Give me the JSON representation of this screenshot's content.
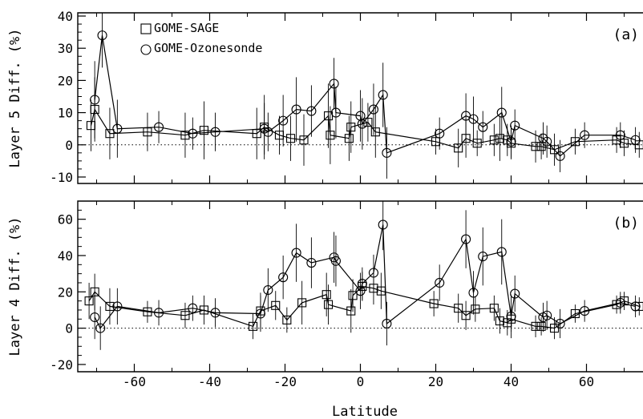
{
  "chart_data": [
    {
      "type": "scatter",
      "panel_label": "(a)",
      "title": "",
      "xlabel": "",
      "ylabel": "Layer 5 Diff. (%)",
      "xlim": [
        -75,
        75
      ],
      "ylim": [
        -12,
        41
      ],
      "yticks": [
        -10,
        0,
        10,
        20,
        30,
        40
      ],
      "xticks": [
        -60,
        -40,
        -20,
        0,
        20,
        40,
        60
      ],
      "legend_position": "top-left",
      "reference_line": 0,
      "series": [
        {
          "name": "GOME-SAGE",
          "marker": "square",
          "points": [
            {
              "x": -71.5,
              "y": 6,
              "err": 8
            },
            {
              "x": -70.5,
              "y": 11,
              "err": 10
            },
            {
              "x": -66.5,
              "y": 3.5,
              "err": 8
            },
            {
              "x": -56.5,
              "y": 4,
              "err": 6
            },
            {
              "x": -46.5,
              "y": 3,
              "err": 7
            },
            {
              "x": -41.5,
              "y": 4.5,
              "err": 9
            },
            {
              "x": -27.5,
              "y": 3.5,
              "err": 8
            },
            {
              "x": -25.5,
              "y": 5.5,
              "err": 10
            },
            {
              "x": -21.5,
              "y": 3,
              "err": 6
            },
            {
              "x": -18.5,
              "y": 2,
              "err": 7
            },
            {
              "x": -15,
              "y": 1.5,
              "err": 8
            },
            {
              "x": -8.5,
              "y": 9,
              "err": 10
            },
            {
              "x": -8,
              "y": 3,
              "err": 9
            },
            {
              "x": -3,
              "y": 2,
              "err": 7
            },
            {
              "x": -2.5,
              "y": 5.5,
              "err": 8
            },
            {
              "x": 2,
              "y": 7,
              "err": 6
            },
            {
              "x": 4,
              "y": 4,
              "err": 8
            },
            {
              "x": 20,
              "y": 1,
              "err": 4
            },
            {
              "x": 26,
              "y": -1,
              "err": 6
            },
            {
              "x": 28,
              "y": 2,
              "err": 6
            },
            {
              "x": 31,
              "y": 0.5,
              "err": 4
            },
            {
              "x": 35.5,
              "y": 1.5,
              "err": 5
            },
            {
              "x": 37,
              "y": 2,
              "err": 7
            },
            {
              "x": 39,
              "y": 1.5,
              "err": 5
            },
            {
              "x": 40,
              "y": 0.5,
              "err": 5
            },
            {
              "x": 46.5,
              "y": -0.5,
              "err": 5
            },
            {
              "x": 48,
              "y": -0.5,
              "err": 4
            },
            {
              "x": 51.5,
              "y": -1.5,
              "err": 5
            },
            {
              "x": 57,
              "y": 1,
              "err": 4
            },
            {
              "x": 68,
              "y": 1.5,
              "err": 4
            },
            {
              "x": 70,
              "y": 0.5,
              "err": 4
            },
            {
              "x": 74,
              "y": 0,
              "err": 4
            }
          ]
        },
        {
          "name": "GOME-Ozonesonde",
          "marker": "circle",
          "points": [
            {
              "x": -70.5,
              "y": 14,
              "err": 12
            },
            {
              "x": -68.5,
              "y": 34,
              "err": 10
            },
            {
              "x": -64.5,
              "y": 5,
              "err": 9
            },
            {
              "x": -53.5,
              "y": 5.5,
              "err": 5
            },
            {
              "x": -44.5,
              "y": 3.5,
              "err": 5
            },
            {
              "x": -38.5,
              "y": 4,
              "err": 6
            },
            {
              "x": -25.5,
              "y": 5,
              "err": 8
            },
            {
              "x": -24.5,
              "y": 4,
              "err": 6
            },
            {
              "x": -20.5,
              "y": 7.5,
              "err": 8
            },
            {
              "x": -17,
              "y": 11,
              "err": 10
            },
            {
              "x": -13,
              "y": 10.5,
              "err": 8
            },
            {
              "x": -7,
              "y": 19,
              "err": 8
            },
            {
              "x": -6.5,
              "y": 10,
              "err": 8
            },
            {
              "x": 0,
              "y": 9,
              "err": 8
            },
            {
              "x": 0.5,
              "y": 6.5,
              "err": 8
            },
            {
              "x": 3.5,
              "y": 11,
              "err": 8
            },
            {
              "x": 6,
              "y": 15.5,
              "err": 10
            },
            {
              "x": 7,
              "y": -2.5,
              "err": 8
            },
            {
              "x": 21,
              "y": 3.5,
              "err": 5
            },
            {
              "x": 28,
              "y": 9,
              "err": 7
            },
            {
              "x": 30,
              "y": 8,
              "err": 7
            },
            {
              "x": 32.5,
              "y": 5.5,
              "err": 5
            },
            {
              "x": 37.5,
              "y": 10,
              "err": 8
            },
            {
              "x": 40,
              "y": 1,
              "err": 5
            },
            {
              "x": 41,
              "y": 6,
              "err": 5
            },
            {
              "x": 48.5,
              "y": 2,
              "err": 5
            },
            {
              "x": 49.5,
              "y": 1,
              "err": 5
            },
            {
              "x": 53,
              "y": -3.5,
              "err": 5
            },
            {
              "x": 59.5,
              "y": 3,
              "err": 4
            },
            {
              "x": 69,
              "y": 3,
              "err": 4
            },
            {
              "x": 73,
              "y": 1.5,
              "err": 4
            }
          ]
        }
      ]
    },
    {
      "type": "scatter",
      "panel_label": "(b)",
      "title": "",
      "xlabel": "Latitude",
      "ylabel": "Layer 4 Diff. (%)",
      "xlim": [
        -75,
        75
      ],
      "ylim": [
        -24,
        70
      ],
      "yticks": [
        -20,
        0,
        20,
        40,
        60
      ],
      "xticks": [
        -60,
        -40,
        -20,
        0,
        20,
        40,
        60
      ],
      "reference_line": 0,
      "series": [
        {
          "name": "GOME-SAGE",
          "marker": "square",
          "points": [
            {
              "x": -72,
              "y": 15,
              "err": 10
            },
            {
              "x": -70.5,
              "y": 20,
              "err": 10
            },
            {
              "x": -66.5,
              "y": 12,
              "err": 10
            },
            {
              "x": -56.5,
              "y": 9,
              "err": 6
            },
            {
              "x": -46.5,
              "y": 7,
              "err": 7
            },
            {
              "x": -41.5,
              "y": 10,
              "err": 8
            },
            {
              "x": -28.5,
              "y": 1,
              "err": 7
            },
            {
              "x": -26.5,
              "y": 9.5,
              "err": 10
            },
            {
              "x": -22.5,
              "y": 12.5,
              "err": 8
            },
            {
              "x": -19.5,
              "y": 4.5,
              "err": 7
            },
            {
              "x": -15.5,
              "y": 14,
              "err": 12
            },
            {
              "x": -9,
              "y": 18.5,
              "err": 12
            },
            {
              "x": -8.5,
              "y": 13,
              "err": 11
            },
            {
              "x": -2.5,
              "y": 9.5,
              "err": 12
            },
            {
              "x": -2,
              "y": 18,
              "err": 9
            },
            {
              "x": 0.5,
              "y": 23,
              "err": 8
            },
            {
              "x": 3.5,
              "y": 22,
              "err": 9
            },
            {
              "x": 5.5,
              "y": 20.5,
              "err": 10
            },
            {
              "x": 19.5,
              "y": 13.5,
              "err": 7
            },
            {
              "x": 26,
              "y": 11,
              "err": 8
            },
            {
              "x": 28,
              "y": 7,
              "err": 8
            },
            {
              "x": 30.5,
              "y": 10.5,
              "err": 7
            },
            {
              "x": 35.5,
              "y": 11,
              "err": 7
            },
            {
              "x": 37,
              "y": 4,
              "err": 7
            },
            {
              "x": 39,
              "y": 3,
              "err": 7
            },
            {
              "x": 40,
              "y": 5,
              "err": 7
            },
            {
              "x": 46.5,
              "y": 1,
              "err": 6
            },
            {
              "x": 48,
              "y": 1,
              "err": 5
            },
            {
              "x": 51.5,
              "y": 0,
              "err": 6
            },
            {
              "x": 57,
              "y": 8,
              "err": 5
            },
            {
              "x": 68,
              "y": 13,
              "err": 5
            },
            {
              "x": 70,
              "y": 15,
              "err": 5
            },
            {
              "x": 74,
              "y": 12,
              "err": 5
            }
          ]
        },
        {
          "name": "GOME-Ozonesonde",
          "marker": "circle",
          "points": [
            {
              "x": -70.5,
              "y": 6,
              "err": 12
            },
            {
              "x": -69,
              "y": 0,
              "err": 12
            },
            {
              "x": -64.5,
              "y": 12,
              "err": 10
            },
            {
              "x": -53.5,
              "y": 8.5,
              "err": 7
            },
            {
              "x": -44.5,
              "y": 11,
              "err": 7
            },
            {
              "x": -38.5,
              "y": 8.5,
              "err": 8
            },
            {
              "x": -26.5,
              "y": 8,
              "err": 10
            },
            {
              "x": -24.5,
              "y": 21,
              "err": 12
            },
            {
              "x": -20.5,
              "y": 28,
              "err": 12
            },
            {
              "x": -17,
              "y": 41.5,
              "err": 16
            },
            {
              "x": -13,
              "y": 36,
              "err": 14
            },
            {
              "x": -7,
              "y": 39,
              "err": 14
            },
            {
              "x": -6.5,
              "y": 37,
              "err": 14
            },
            {
              "x": 0,
              "y": 20.5,
              "err": 10
            },
            {
              "x": 0.5,
              "y": 24.5,
              "err": 9
            },
            {
              "x": 3.5,
              "y": 30.5,
              "err": 10
            },
            {
              "x": 6,
              "y": 57,
              "err": 14
            },
            {
              "x": 7,
              "y": 2.5,
              "err": 12
            },
            {
              "x": 21,
              "y": 25,
              "err": 10
            },
            {
              "x": 28,
              "y": 49,
              "err": 16
            },
            {
              "x": 30,
              "y": 19.5,
              "err": 12
            },
            {
              "x": 32.5,
              "y": 39.5,
              "err": 16
            },
            {
              "x": 37.5,
              "y": 42,
              "err": 18
            },
            {
              "x": 40,
              "y": 6.5,
              "err": 12
            },
            {
              "x": 41,
              "y": 19,
              "err": 10
            },
            {
              "x": 48.5,
              "y": 6,
              "err": 8
            },
            {
              "x": 49.5,
              "y": 7,
              "err": 8
            },
            {
              "x": 53,
              "y": 2.5,
              "err": 8
            },
            {
              "x": 59.5,
              "y": 9.5,
              "err": 6
            },
            {
              "x": 69,
              "y": 14,
              "err": 6
            },
            {
              "x": 73,
              "y": 12,
              "err": 6
            }
          ]
        }
      ]
    }
  ]
}
